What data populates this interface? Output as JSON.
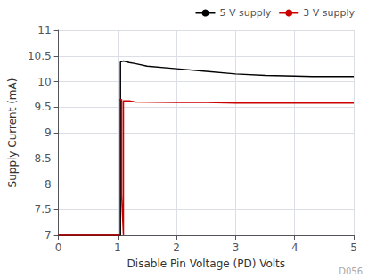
{
  "chart_data": {
    "type": "line",
    "xlabel": "Disable Pin Voltage (PD) Volts",
    "ylabel": "Supply Current (mA)",
    "xlim": [
      0,
      5
    ],
    "ylim": [
      7,
      11
    ],
    "xticks": [
      0,
      1,
      2,
      3,
      4,
      5
    ],
    "yticks": [
      7,
      7.5,
      8,
      8.5,
      9,
      9.5,
      10,
      10.5,
      11
    ],
    "grid": true,
    "legend": "upper right",
    "annotations": [
      "D056"
    ],
    "series": [
      {
        "name": "5 V supply",
        "color": "#000000",
        "x": [
          0.0,
          1.05,
          1.05,
          1.1,
          1.2,
          1.3,
          1.5,
          2.0,
          2.5,
          3.0,
          3.5,
          4.0,
          4.3,
          4.5,
          4.7,
          5.0
        ],
        "values": [
          7.0,
          7.0,
          10.38,
          10.4,
          10.37,
          10.35,
          10.3,
          10.25,
          10.2,
          10.15,
          10.12,
          10.11,
          10.1,
          10.1,
          10.1,
          10.1
        ]
      },
      {
        "name": "3 V supply",
        "color": "#cc0000",
        "x": [
          0.0,
          1.03,
          1.03,
          1.07,
          1.07,
          1.1,
          1.1,
          1.2,
          1.3,
          2.0,
          2.5,
          3.0,
          3.1,
          5.0
        ],
        "values": [
          7.0,
          7.0,
          9.65,
          9.65,
          7.78,
          7.0,
          9.62,
          9.62,
          9.6,
          9.59,
          9.59,
          9.58,
          9.58,
          9.58
        ]
      }
    ]
  }
}
